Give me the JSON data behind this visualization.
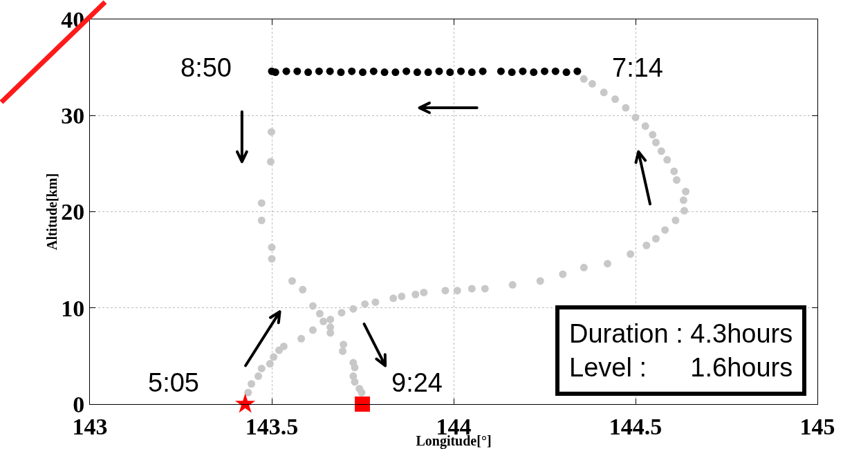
{
  "chart_data": {
    "type": "scatter",
    "xlabel": "Longitude[°]",
    "ylabel": "Altitude[km]",
    "xlim": [
      143,
      145
    ],
    "xticks": [
      143,
      143.5,
      144,
      144.5,
      145
    ],
    "ylim": [
      0,
      40
    ],
    "yticks": [
      0,
      10,
      20,
      30,
      40
    ],
    "grid": true,
    "marker": "circle",
    "series": [
      {
        "color": "#c8c8c8",
        "x": [
          143.435,
          143.444,
          143.463,
          143.472,
          143.495,
          143.505,
          143.52,
          143.533,
          143.581,
          143.613,
          143.661,
          143.692,
          143.724,
          143.756,
          143.785,
          143.834,
          143.857,
          143.895,
          143.918,
          143.977,
          144.01,
          144.05,
          144.086,
          144.162,
          144.238,
          144.3,
          144.358,
          144.423,
          144.486,
          144.53,
          144.556,
          144.581,
          144.61,
          144.634,
          144.632,
          144.638,
          144.613,
          144.606,
          144.587,
          144.571,
          144.556,
          144.547,
          144.527,
          144.5,
          144.473,
          144.444,
          144.413,
          144.381,
          144.358
        ],
        "values": [
          1.2,
          2.1,
          2.9,
          3.7,
          4.2,
          4.9,
          5.6,
          6.0,
          6.8,
          7.7,
          8.8,
          9.5,
          9.9,
          10.4,
          10.6,
          11.0,
          11.2,
          11.4,
          11.6,
          11.8,
          11.8,
          12.0,
          12.0,
          12.4,
          12.8,
          13.5,
          14.2,
          14.6,
          15.6,
          16.5,
          17.2,
          18.1,
          19.1,
          20.1,
          21.2,
          22.1,
          23.3,
          24.2,
          25.4,
          26.3,
          27.2,
          28.0,
          28.9,
          29.8,
          30.8,
          31.7,
          32.4,
          33.3,
          33.8
        ]
      },
      {
        "color": "#000000",
        "x": [
          144.34,
          144.31,
          144.28,
          144.25,
          144.22,
          144.19,
          144.16,
          144.13,
          144.08,
          144.05,
          144.02,
          143.99,
          143.96,
          143.93,
          143.9,
          143.87,
          143.84,
          143.81,
          143.78,
          143.75,
          143.72,
          143.69,
          143.66,
          143.63,
          143.6,
          143.57,
          143.54,
          143.51,
          143.5
        ],
        "values": [
          34.6,
          34.5,
          34.6,
          34.6,
          34.5,
          34.6,
          34.5,
          34.6,
          34.6,
          34.5,
          34.6,
          34.5,
          34.6,
          34.5,
          34.5,
          34.6,
          34.5,
          34.5,
          34.6,
          34.5,
          34.6,
          34.5,
          34.6,
          34.6,
          34.5,
          34.6,
          34.6,
          34.5,
          34.6
        ]
      },
      {
        "color": "#c8c8c8",
        "x": [
          143.499,
          143.497,
          143.472,
          143.472,
          143.5,
          143.5,
          143.556,
          143.585,
          143.613,
          143.632,
          143.642,
          143.661,
          143.661,
          143.697,
          143.695,
          143.724,
          143.728,
          143.724,
          143.728,
          143.741,
          143.747
        ],
        "values": [
          28.3,
          25.2,
          20.9,
          19.1,
          16.3,
          15.1,
          12.8,
          11.9,
          10.2,
          9.4,
          8.6,
          8.0,
          7.4,
          6.2,
          5.5,
          4.3,
          3.8,
          2.9,
          2.3,
          1.6,
          1.2
        ]
      },
      {
        "color": "#ff0000",
        "marker": "star",
        "x": [
          143.427
        ],
        "values": [
          0
        ]
      },
      {
        "color": "#ff0000",
        "marker": "square",
        "x": [
          143.749
        ],
        "values": [
          0
        ]
      }
    ],
    "annotations": [
      "8:50",
      "7:14",
      "5:05",
      "9:24",
      "Duration : 4.3hours",
      "Level :      1.6hours"
    ]
  }
}
